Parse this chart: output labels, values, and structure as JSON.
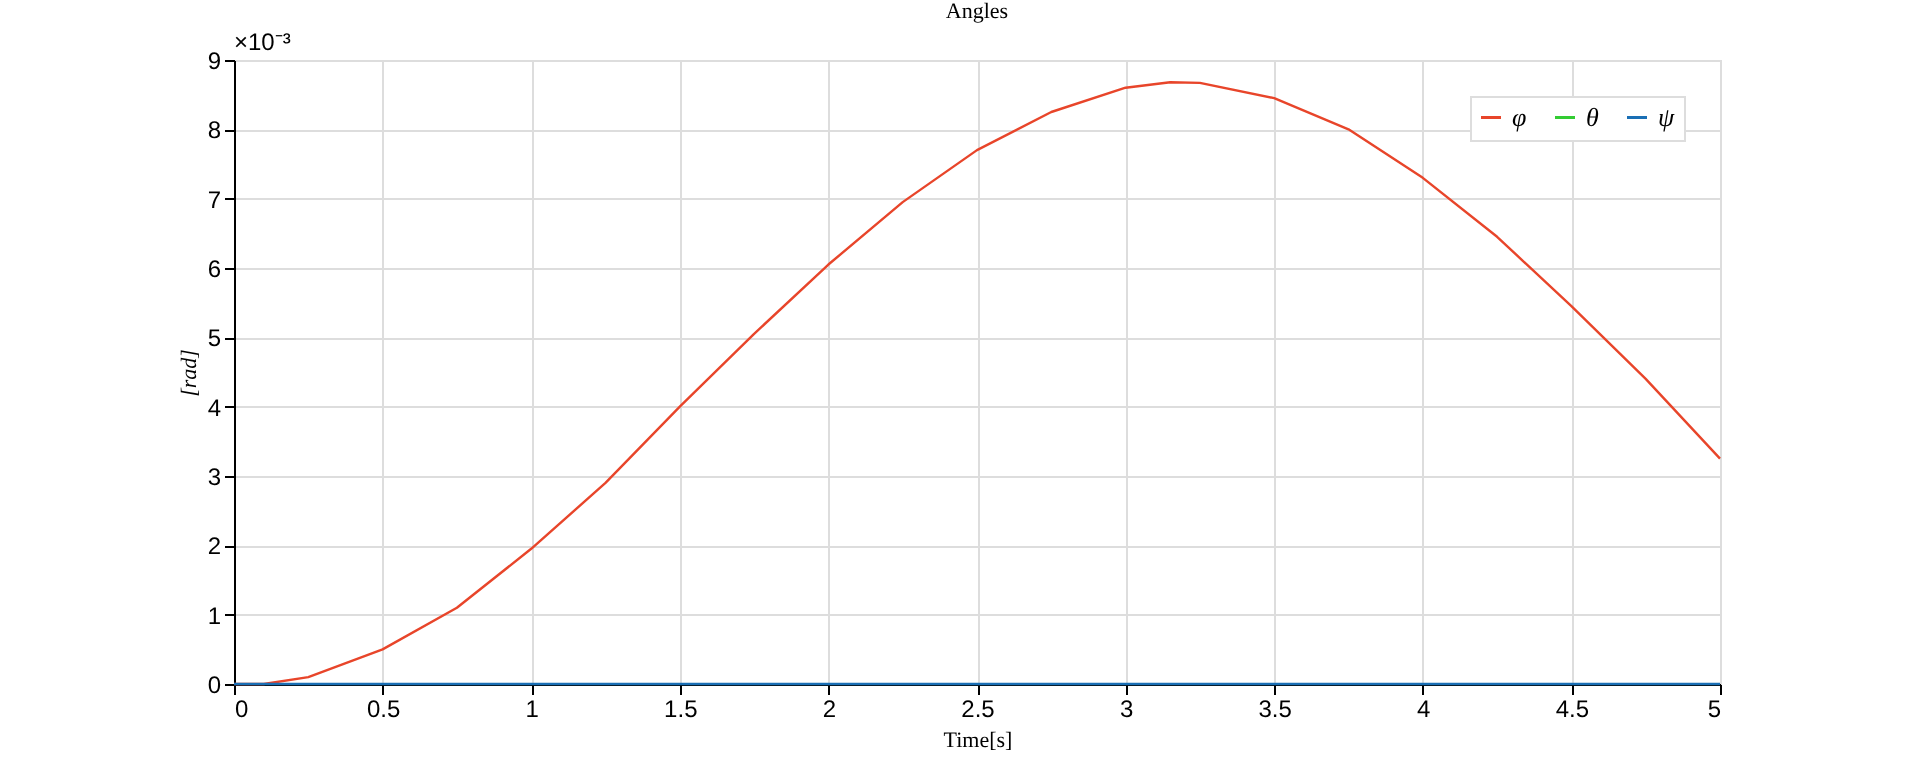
{
  "chart_data": {
    "type": "line",
    "title": "Angles",
    "xlabel": "Time[s]",
    "ylabel": "[rad]",
    "x": [
      0,
      0.1,
      0.25,
      0.5,
      0.75,
      1.0,
      1.25,
      1.5,
      1.75,
      2.0,
      2.25,
      2.5,
      2.75,
      3.0,
      3.15,
      3.25,
      3.5,
      3.75,
      4.0,
      4.25,
      4.5,
      4.75,
      5.0
    ],
    "series": [
      {
        "name": "φ",
        "color": "#e8452a",
        "values": [
          0,
          0.0,
          0.1,
          0.5,
          1.1,
          1.95,
          2.9,
          4.0,
          5.05,
          6.05,
          6.95,
          7.7,
          8.25,
          8.6,
          8.68,
          8.67,
          8.45,
          8.0,
          7.3,
          6.45,
          5.45,
          4.4,
          3.25
        ]
      },
      {
        "name": "θ",
        "color": "#33cc33",
        "values": [
          null,
          null,
          null,
          null,
          null,
          null,
          null,
          null,
          null,
          null,
          null,
          null,
          null,
          null,
          null,
          null,
          null,
          null,
          null,
          null,
          null,
          null,
          null
        ]
      },
      {
        "name": "ψ",
        "color": "#1a6fb5",
        "values": [
          0,
          0,
          0,
          0,
          0,
          0,
          0,
          0,
          0,
          0,
          0,
          0,
          0,
          0,
          0,
          0,
          0,
          0,
          0,
          0,
          0,
          0,
          0
        ]
      }
    ],
    "xlim": [
      0,
      5
    ],
    "xticks": [
      0,
      0.5,
      1,
      1.5,
      2,
      2.5,
      3,
      3.5,
      4,
      4.5,
      5
    ],
    "ylim": [
      0,
      9
    ],
    "yticks": [
      0,
      1,
      2,
      3,
      4,
      5,
      6,
      7,
      8,
      9
    ],
    "grid": true,
    "legend": "top right",
    "annotations": [
      "×10⁻³"
    ]
  }
}
